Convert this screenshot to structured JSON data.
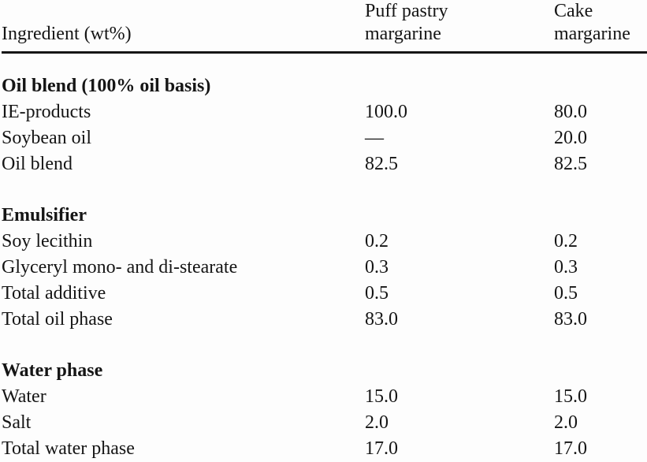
{
  "page": {
    "background": "#fdfdfd",
    "text_color": "#151515",
    "rule_color": "#161616"
  },
  "table": {
    "columns": {
      "ingredient": "Ingredient (wt%)",
      "puff_pastry": "Puff pastry margarine",
      "cake": "Cake margarine"
    },
    "sections": [
      {
        "title": "Oil blend (100% oil basis)",
        "rows": [
          {
            "ingredient": "IE-products",
            "puff_pastry": "100.0",
            "cake": "80.0"
          },
          {
            "ingredient": "Soybean oil",
            "puff_pastry": "—",
            "cake": "20.0"
          },
          {
            "ingredient": "Oil blend",
            "puff_pastry": "82.5",
            "cake": "82.5"
          }
        ]
      },
      {
        "title": "Emulsifier",
        "rows": [
          {
            "ingredient": "Soy lecithin",
            "puff_pastry": "0.2",
            "cake": "0.2"
          },
          {
            "ingredient": "Glyceryl mono- and di-stearate",
            "puff_pastry": "0.3",
            "cake": "0.3"
          },
          {
            "ingredient": "Total additive",
            "puff_pastry": "0.5",
            "cake": "0.5"
          },
          {
            "ingredient": "Total oil phase",
            "puff_pastry": "83.0",
            "cake": "83.0"
          }
        ]
      },
      {
        "title": "Water phase",
        "rows": [
          {
            "ingredient": "Water",
            "puff_pastry": "15.0",
            "cake": "15.0"
          },
          {
            "ingredient": "Salt",
            "puff_pastry": "2.0",
            "cake": "2.0"
          },
          {
            "ingredient": "Total water phase",
            "puff_pastry": "17.0",
            "cake": "17.0"
          }
        ]
      }
    ]
  }
}
